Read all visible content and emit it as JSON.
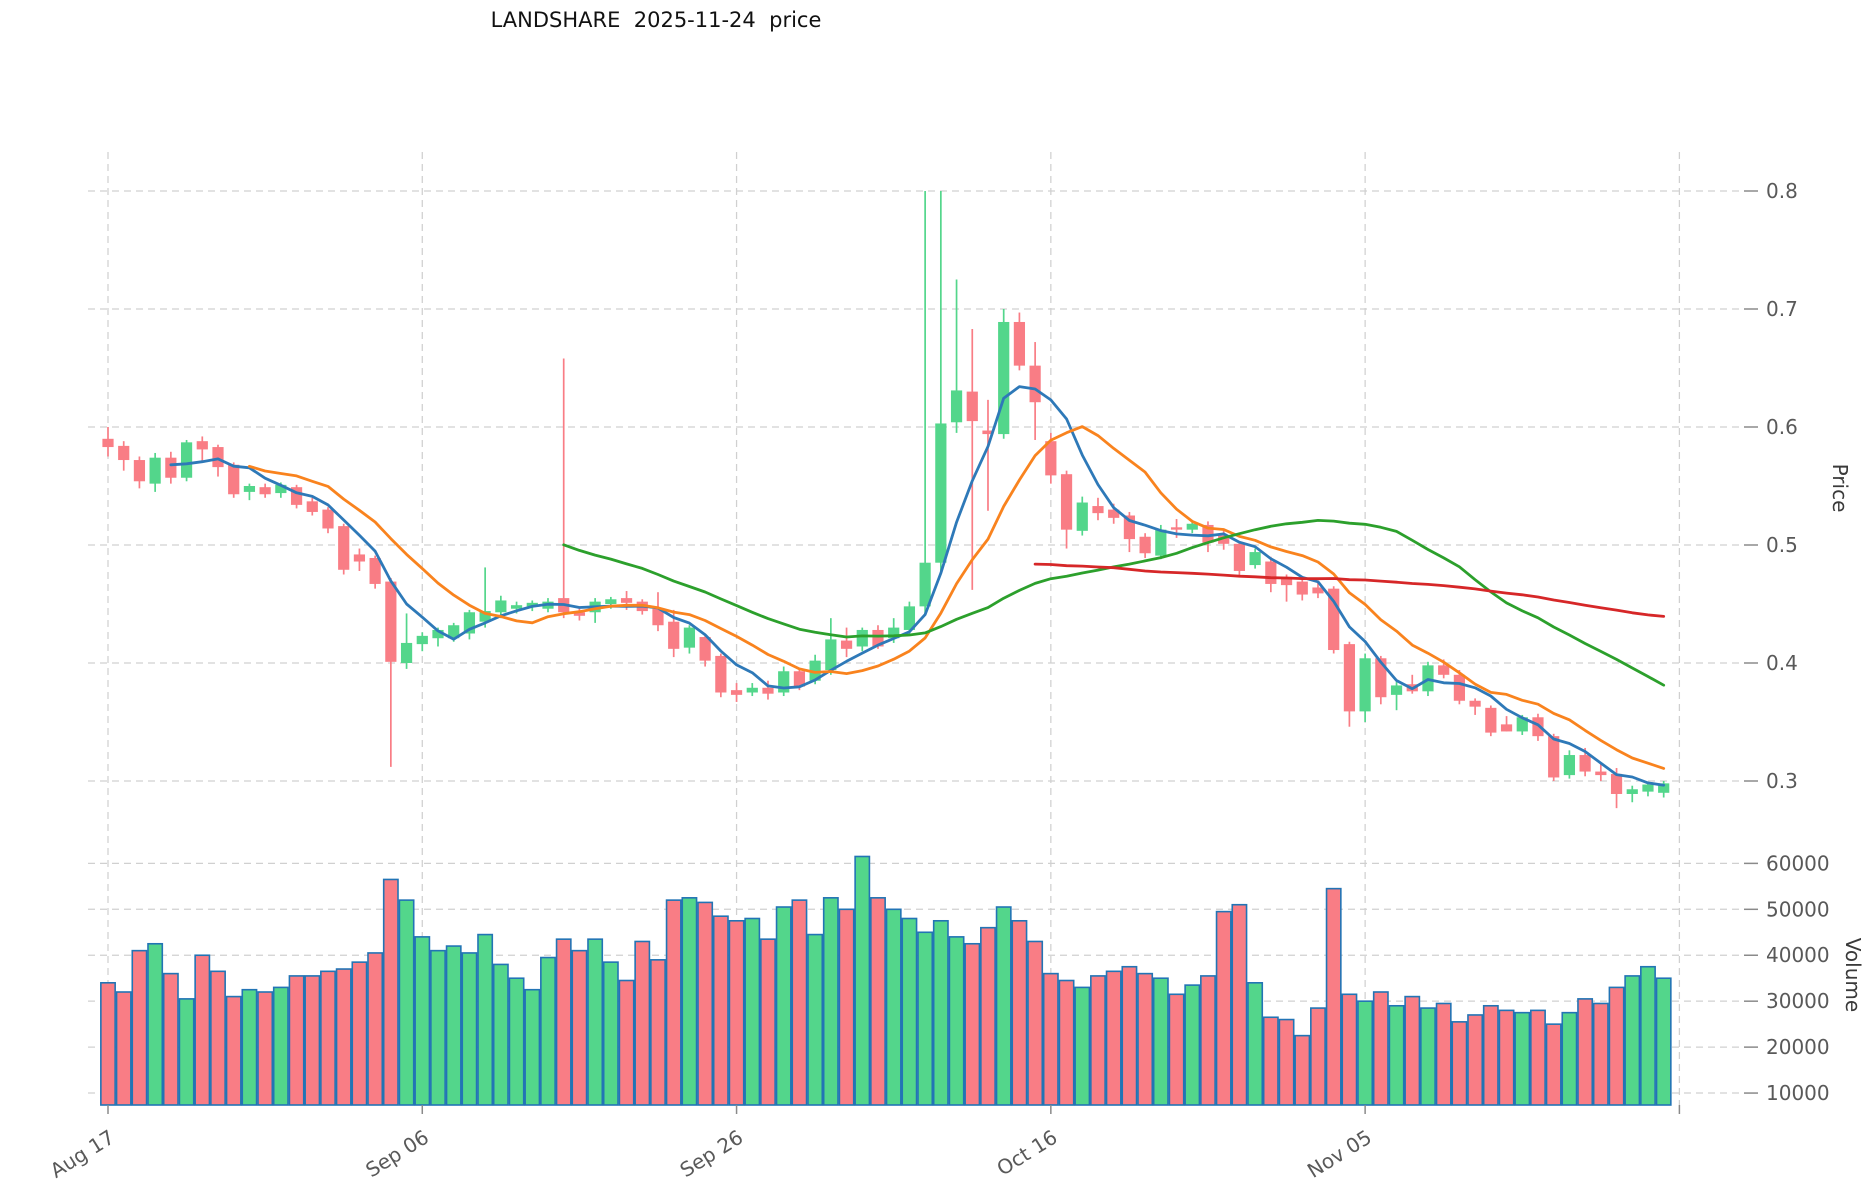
{
  "title": "LANDSHARE  2025-11-24  price",
  "axes": {
    "price_axis": {
      "label": "Price",
      "ticks": [
        0.3,
        0.4,
        0.5,
        0.6,
        0.7,
        0.8
      ],
      "side": "right"
    },
    "volume_axis": {
      "label": "Volume",
      "ticks": [
        10000,
        20000,
        30000,
        40000,
        50000,
        60000
      ],
      "side": "right"
    },
    "x_axis": {
      "tick_labels": [
        "Aug 17",
        "Sep 06",
        "Sep 26",
        "Oct 16",
        "Nov 05"
      ],
      "tick_day_indices": [
        0,
        20,
        40,
        60,
        80
      ],
      "unlabeled_extra_tick_day": 100,
      "label_rotation_deg": 32
    }
  },
  "style": {
    "up_color": "#53d68b",
    "down_color": "#f97d85",
    "volume_edge_color": "#2274b5",
    "grid_color": "#d0d0d0",
    "tick_label_color": "#595959",
    "ma_colors": {
      "ma5": "#2e79b8",
      "ma10": "#f9831e",
      "ma30": "#2ca02c",
      "ma60": "#d62728"
    },
    "background": "#ffffff"
  },
  "chart_data": {
    "type": "candlestick",
    "title": "LANDSHARE  2025-11-24  price",
    "panels": [
      "price-candles-with-moving-averages",
      "volume-bars"
    ],
    "price_ylim": [
      0.267,
      0.832
    ],
    "volume_ylim": [
      7400,
      64000
    ],
    "grid": "dashed-both-axes",
    "legend_position": "none",
    "moving_averages": [
      {
        "name": "ma5",
        "window": 5,
        "color": "#2e79b8"
      },
      {
        "name": "ma10",
        "window": 10,
        "color": "#f9831e"
      },
      {
        "name": "ma30",
        "window": 30,
        "color": "#2ca02c"
      },
      {
        "name": "ma60",
        "window": 60,
        "color": "#d62728"
      }
    ],
    "dates": [
      "2025-08-17",
      "2025-08-18",
      "2025-08-19",
      "2025-08-20",
      "2025-08-21",
      "2025-08-22",
      "2025-08-23",
      "2025-08-24",
      "2025-08-25",
      "2025-08-26",
      "2025-08-27",
      "2025-08-28",
      "2025-08-29",
      "2025-08-30",
      "2025-08-31",
      "2025-09-01",
      "2025-09-02",
      "2025-09-03",
      "2025-09-04",
      "2025-09-05",
      "2025-09-06",
      "2025-09-07",
      "2025-09-08",
      "2025-09-09",
      "2025-09-10",
      "2025-09-11",
      "2025-09-12",
      "2025-09-13",
      "2025-09-14",
      "2025-09-15",
      "2025-09-16",
      "2025-09-17",
      "2025-09-18",
      "2025-09-19",
      "2025-09-20",
      "2025-09-21",
      "2025-09-22",
      "2025-09-23",
      "2025-09-24",
      "2025-09-25",
      "2025-09-26",
      "2025-09-27",
      "2025-09-28",
      "2025-09-29",
      "2025-09-30",
      "2025-10-01",
      "2025-10-02",
      "2025-10-03",
      "2025-10-04",
      "2025-10-05",
      "2025-10-06",
      "2025-10-07",
      "2025-10-08",
      "2025-10-09",
      "2025-10-10",
      "2025-10-11",
      "2025-10-12",
      "2025-10-13",
      "2025-10-14",
      "2025-10-15",
      "2025-10-16",
      "2025-10-17",
      "2025-10-18",
      "2025-10-19",
      "2025-10-20",
      "2025-10-21",
      "2025-10-22",
      "2025-10-23",
      "2025-10-24",
      "2025-10-25",
      "2025-10-26",
      "2025-10-27",
      "2025-10-28",
      "2025-10-29",
      "2025-10-30",
      "2025-10-31",
      "2025-11-01",
      "2025-11-02",
      "2025-11-03",
      "2025-11-04",
      "2025-11-05",
      "2025-11-06",
      "2025-11-07",
      "2025-11-08",
      "2025-11-09",
      "2025-11-10",
      "2025-11-11",
      "2025-11-12",
      "2025-11-13",
      "2025-11-14",
      "2025-11-15",
      "2025-11-16",
      "2025-11-17",
      "2025-11-18",
      "2025-11-19",
      "2025-11-20",
      "2025-11-21",
      "2025-11-22",
      "2025-11-23",
      "2025-11-24"
    ],
    "open": [
      0.59,
      0.584,
      0.572,
      0.552,
      0.574,
      0.557,
      0.588,
      0.583,
      0.568,
      0.545,
      0.549,
      0.544,
      0.549,
      0.537,
      0.53,
      0.516,
      0.492,
      0.489,
      0.469,
      0.4,
      0.416,
      0.421,
      0.421,
      0.425,
      0.435,
      0.443,
      0.446,
      0.448,
      0.446,
      0.455,
      0.443,
      0.443,
      0.45,
      0.455,
      0.452,
      0.446,
      0.435,
      0.413,
      0.422,
      0.406,
      0.377,
      0.375,
      0.379,
      0.375,
      0.393,
      0.385,
      0.394,
      0.419,
      0.414,
      0.428,
      0.421,
      0.428,
      0.448,
      0.485,
      0.604,
      0.63,
      0.597,
      0.594,
      0.689,
      0.652,
      0.588,
      0.56,
      0.512,
      0.533,
      0.53,
      0.525,
      0.507,
      0.491,
      0.515,
      0.513,
      0.517,
      0.508,
      0.501,
      0.483,
      0.486,
      0.473,
      0.469,
      0.464,
      0.463,
      0.416,
      0.359,
      0.404,
      0.373,
      0.382,
      0.376,
      0.398,
      0.39,
      0.368,
      0.362,
      0.348,
      0.342,
      0.354,
      0.338,
      0.305,
      0.322,
      0.308,
      0.306,
      0.289,
      0.291,
      0.29
    ],
    "high": [
      0.6,
      0.588,
      0.575,
      0.578,
      0.579,
      0.589,
      0.592,
      0.585,
      0.57,
      0.552,
      0.552,
      0.553,
      0.551,
      0.54,
      0.532,
      0.518,
      0.497,
      0.491,
      0.472,
      0.442,
      0.426,
      0.43,
      0.434,
      0.445,
      0.481,
      0.457,
      0.452,
      0.453,
      0.455,
      0.658,
      0.447,
      0.455,
      0.456,
      0.461,
      0.454,
      0.46,
      0.445,
      0.432,
      0.425,
      0.408,
      0.383,
      0.383,
      0.385,
      0.397,
      0.395,
      0.407,
      0.438,
      0.43,
      0.43,
      0.432,
      0.438,
      0.452,
      0.8,
      0.8,
      0.725,
      0.683,
      0.623,
      0.7,
      0.697,
      0.672,
      0.595,
      0.563,
      0.541,
      0.54,
      0.535,
      0.528,
      0.51,
      0.517,
      0.522,
      0.521,
      0.52,
      0.513,
      0.503,
      0.497,
      0.49,
      0.475,
      0.471,
      0.468,
      0.465,
      0.418,
      0.408,
      0.406,
      0.384,
      0.39,
      0.401,
      0.403,
      0.394,
      0.37,
      0.364,
      0.355,
      0.356,
      0.357,
      0.34,
      0.326,
      0.328,
      0.315,
      0.311,
      0.296,
      0.299,
      0.3
    ],
    "low": [
      0.575,
      0.563,
      0.548,
      0.545,
      0.552,
      0.554,
      0.57,
      0.558,
      0.54,
      0.538,
      0.54,
      0.54,
      0.531,
      0.525,
      0.51,
      0.475,
      0.478,
      0.463,
      0.312,
      0.395,
      0.41,
      0.414,
      0.418,
      0.42,
      0.43,
      0.438,
      0.442,
      0.444,
      0.443,
      0.438,
      0.436,
      0.434,
      0.446,
      0.445,
      0.441,
      0.427,
      0.405,
      0.408,
      0.397,
      0.371,
      0.367,
      0.372,
      0.369,
      0.372,
      0.377,
      0.382,
      0.39,
      0.405,
      0.41,
      0.412,
      0.417,
      0.424,
      0.44,
      0.478,
      0.595,
      0.462,
      0.529,
      0.59,
      0.648,
      0.589,
      0.552,
      0.497,
      0.508,
      0.521,
      0.518,
      0.494,
      0.489,
      0.488,
      0.506,
      0.51,
      0.494,
      0.496,
      0.474,
      0.48,
      0.46,
      0.452,
      0.453,
      0.455,
      0.408,
      0.346,
      0.35,
      0.365,
      0.36,
      0.374,
      0.372,
      0.387,
      0.365,
      0.356,
      0.338,
      0.342,
      0.339,
      0.334,
      0.3,
      0.302,
      0.304,
      0.3,
      0.277,
      0.282,
      0.287,
      0.286
    ],
    "close": [
      0.583,
      0.572,
      0.554,
      0.574,
      0.557,
      0.587,
      0.581,
      0.566,
      0.543,
      0.55,
      0.543,
      0.551,
      0.534,
      0.528,
      0.514,
      0.479,
      0.486,
      0.467,
      0.401,
      0.417,
      0.423,
      0.428,
      0.432,
      0.443,
      0.444,
      0.453,
      0.449,
      0.451,
      0.452,
      0.443,
      0.44,
      0.452,
      0.454,
      0.451,
      0.444,
      0.432,
      0.412,
      0.43,
      0.402,
      0.375,
      0.373,
      0.379,
      0.374,
      0.393,
      0.38,
      0.402,
      0.42,
      0.412,
      0.428,
      0.414,
      0.43,
      0.448,
      0.485,
      0.603,
      0.631,
      0.605,
      0.594,
      0.689,
      0.652,
      0.621,
      0.559,
      0.513,
      0.536,
      0.527,
      0.523,
      0.505,
      0.493,
      0.513,
      0.513,
      0.518,
      0.502,
      0.501,
      0.478,
      0.494,
      0.467,
      0.466,
      0.458,
      0.459,
      0.411,
      0.359,
      0.404,
      0.371,
      0.381,
      0.376,
      0.398,
      0.39,
      0.368,
      0.363,
      0.341,
      0.342,
      0.354,
      0.338,
      0.303,
      0.322,
      0.308,
      0.305,
      0.289,
      0.293,
      0.297,
      0.298
    ],
    "volume": [
      34000,
      32000,
      41000,
      42500,
      36000,
      30500,
      40000,
      36500,
      31000,
      32500,
      32000,
      33000,
      35500,
      35500,
      36500,
      37000,
      38500,
      40500,
      56500,
      52000,
      44000,
      41000,
      42000,
      40500,
      44500,
      38000,
      35000,
      32500,
      39500,
      43500,
      41000,
      43500,
      38500,
      34500,
      43000,
      39000,
      52000,
      52500,
      51500,
      48500,
      47500,
      48000,
      43500,
      50500,
      52000,
      44500,
      52500,
      50000,
      61500,
      52500,
      50000,
      48000,
      45000,
      47500,
      44000,
      42500,
      46000,
      50500,
      47500,
      43000,
      36000,
      34500,
      33000,
      35500,
      36500,
      37500,
      36000,
      35000,
      31500,
      33500,
      35500,
      49500,
      51000,
      34000,
      26500,
      26000,
      22500,
      28500,
      54500,
      31500,
      30000,
      32000,
      29000,
      31000,
      28500,
      29500,
      25500,
      27000,
      29000,
      28000,
      27500,
      28000,
      25000,
      27500,
      30500,
      29500,
      33000,
      35500,
      37500,
      35000
    ]
  }
}
